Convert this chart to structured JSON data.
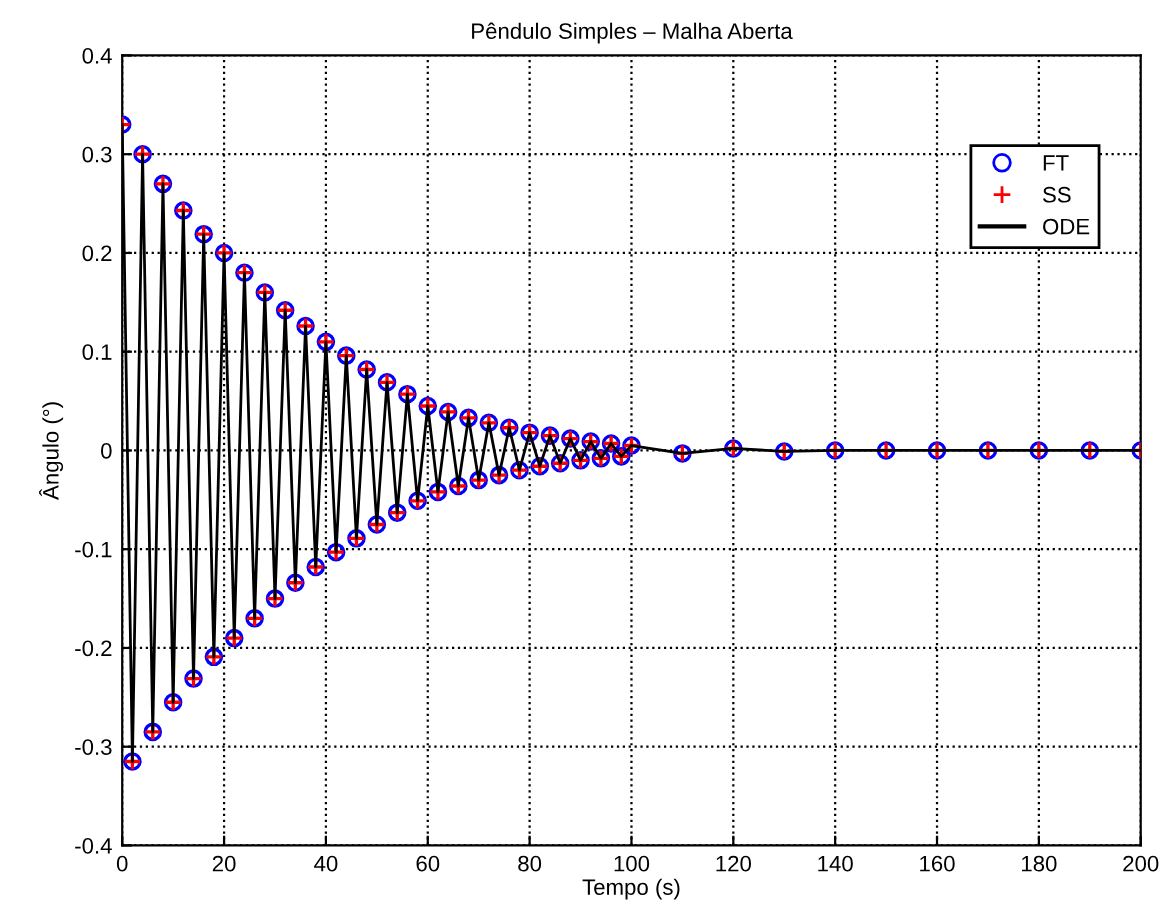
{
  "chart_data": {
    "type": "line",
    "title": "Pêndulo Simples – Malha Aberta",
    "xlabel": "Tempo (s)",
    "ylabel": "Ângulo (°)",
    "x": [
      0,
      2,
      4,
      6,
      8,
      10,
      12,
      14,
      16,
      18,
      20,
      22,
      24,
      26,
      28,
      30,
      32,
      34,
      36,
      38,
      40,
      42,
      44,
      46,
      48,
      50,
      52,
      54,
      56,
      58,
      60,
      62,
      64,
      66,
      68,
      70,
      72,
      74,
      76,
      78,
      80,
      82,
      84,
      86,
      88,
      90,
      92,
      94,
      96,
      98,
      100,
      110,
      120,
      130,
      140,
      150,
      160,
      170,
      180,
      190,
      200
    ],
    "series": [
      {
        "name": "FT",
        "type": "scatter",
        "marker": "circle",
        "color": "#0000ff",
        "values": [
          0.33,
          -0.315,
          0.3,
          -0.285,
          0.27,
          -0.255,
          0.243,
          -0.231,
          0.219,
          -0.209,
          0.2,
          -0.19,
          0.18,
          -0.17,
          0.16,
          -0.15,
          0.142,
          -0.134,
          0.126,
          -0.118,
          0.11,
          -0.103,
          0.096,
          -0.089,
          0.082,
          -0.075,
          0.069,
          -0.063,
          0.057,
          -0.051,
          0.045,
          -0.042,
          0.039,
          -0.036,
          0.033,
          -0.03,
          0.028,
          -0.025,
          0.023,
          -0.02,
          0.018,
          -0.016,
          0.015,
          -0.013,
          0.012,
          -0.01,
          0.009,
          -0.008,
          0.007,
          -0.006,
          0.005,
          -0.003,
          0.002,
          -0.001,
          0,
          0,
          0,
          0,
          0,
          0,
          0
        ]
      },
      {
        "name": "SS",
        "type": "scatter",
        "marker": "cross",
        "color": "#ff0000",
        "values": [
          0.33,
          -0.315,
          0.3,
          -0.285,
          0.27,
          -0.255,
          0.243,
          -0.231,
          0.219,
          -0.209,
          0.2,
          -0.19,
          0.18,
          -0.17,
          0.16,
          -0.15,
          0.142,
          -0.134,
          0.126,
          -0.118,
          0.11,
          -0.103,
          0.096,
          -0.089,
          0.082,
          -0.075,
          0.069,
          -0.063,
          0.057,
          -0.051,
          0.045,
          -0.042,
          0.039,
          -0.036,
          0.033,
          -0.03,
          0.028,
          -0.025,
          0.023,
          -0.02,
          0.018,
          -0.016,
          0.015,
          -0.013,
          0.012,
          -0.01,
          0.009,
          -0.008,
          0.007,
          -0.006,
          0.005,
          -0.003,
          0.002,
          -0.001,
          0,
          0,
          0,
          0,
          0,
          0,
          0
        ]
      },
      {
        "name": "ODE",
        "marker": "none",
        "line_style": "solid",
        "color": "#000000",
        "values": [
          0.33,
          -0.315,
          0.3,
          -0.285,
          0.27,
          -0.255,
          0.243,
          -0.231,
          0.219,
          -0.209,
          0.2,
          -0.19,
          0.18,
          -0.17,
          0.16,
          -0.15,
          0.142,
          -0.134,
          0.126,
          -0.118,
          0.11,
          -0.103,
          0.096,
          -0.089,
          0.082,
          -0.075,
          0.069,
          -0.063,
          0.057,
          -0.051,
          0.045,
          -0.042,
          0.039,
          -0.036,
          0.033,
          -0.03,
          0.028,
          -0.025,
          0.023,
          -0.02,
          0.018,
          -0.016,
          0.015,
          -0.013,
          0.012,
          -0.01,
          0.009,
          -0.008,
          0.007,
          -0.006,
          0.005,
          -0.003,
          0.002,
          -0.001,
          0,
          0,
          0,
          0,
          0,
          0,
          0
        ]
      }
    ],
    "xlim": [
      0,
      200
    ],
    "xticks": [
      0,
      20,
      40,
      60,
      80,
      100,
      120,
      140,
      160,
      180,
      200
    ],
    "ylim": [
      -0.4,
      0.4
    ],
    "yticks": [
      -0.4,
      -0.3,
      -0.2,
      -0.1,
      0,
      0.1,
      0.2,
      0.3,
      0.4
    ],
    "grid": true,
    "legend": "top right"
  }
}
